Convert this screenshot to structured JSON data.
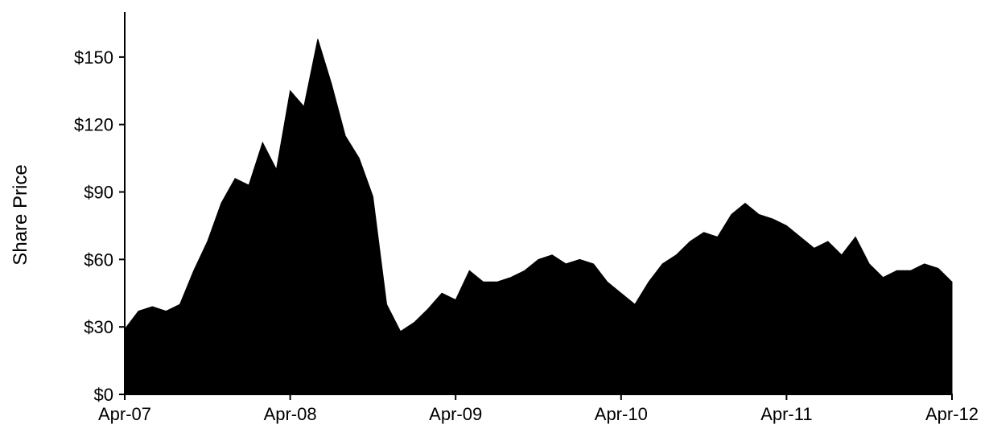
{
  "chart_data": {
    "type": "area",
    "title": "",
    "xlabel": "",
    "ylabel": "Share Price",
    "y_unit": "$",
    "ylim": [
      0,
      170
    ],
    "xlim": [
      "2007-04",
      "2012-04"
    ],
    "y_ticks": [
      {
        "value": 0,
        "label": "$0"
      },
      {
        "value": 30,
        "label": "$30"
      },
      {
        "value": 60,
        "label": "$60"
      },
      {
        "value": 90,
        "label": "$90"
      },
      {
        "value": 120,
        "label": "$120"
      },
      {
        "value": 150,
        "label": "$150"
      }
    ],
    "x_ticks": [
      {
        "value": "2007-04",
        "label": "Apr-07"
      },
      {
        "value": "2008-04",
        "label": "Apr-08"
      },
      {
        "value": "2009-04",
        "label": "Apr-09"
      },
      {
        "value": "2010-04",
        "label": "Apr-10"
      },
      {
        "value": "2011-04",
        "label": "Apr-11"
      },
      {
        "value": "2012-04",
        "label": "Apr-12"
      }
    ],
    "grid": false,
    "legend": "none",
    "fill_color": "#000000",
    "series": [
      {
        "x": [
          "2007-04",
          "2007-05",
          "2007-06",
          "2007-07",
          "2007-08",
          "2007-09",
          "2007-10",
          "2007-11",
          "2007-12",
          "2008-01",
          "2008-02",
          "2008-03",
          "2008-04",
          "2008-05",
          "2008-06",
          "2008-07",
          "2008-08",
          "2008-09",
          "2008-10",
          "2008-11",
          "2008-12",
          "2009-01",
          "2009-02",
          "2009-03",
          "2009-04",
          "2009-05",
          "2009-06",
          "2009-07",
          "2009-08",
          "2009-09",
          "2009-10",
          "2009-11",
          "2009-12",
          "2010-01",
          "2010-02",
          "2010-03",
          "2010-04",
          "2010-05",
          "2010-06",
          "2010-07",
          "2010-08",
          "2010-09",
          "2010-10",
          "2010-11",
          "2010-12",
          "2011-01",
          "2011-02",
          "2011-03",
          "2011-04",
          "2011-05",
          "2011-06",
          "2011-07",
          "2011-08",
          "2011-09",
          "2011-10",
          "2011-11",
          "2011-12",
          "2012-01",
          "2012-02",
          "2012-03",
          "2012-04"
        ],
        "values": [
          29,
          37,
          39,
          37,
          40,
          55,
          68,
          85,
          96,
          93,
          112,
          100,
          135,
          128,
          158,
          138,
          115,
          105,
          88,
          40,
          28,
          32,
          38,
          45,
          42,
          55,
          50,
          50,
          52,
          55,
          60,
          62,
          58,
          60,
          58,
          50,
          45,
          40,
          50,
          58,
          62,
          68,
          72,
          70,
          80,
          85,
          80,
          78,
          75,
          70,
          65,
          68,
          62,
          70,
          58,
          52,
          55,
          55,
          58,
          56,
          50
        ]
      }
    ]
  }
}
